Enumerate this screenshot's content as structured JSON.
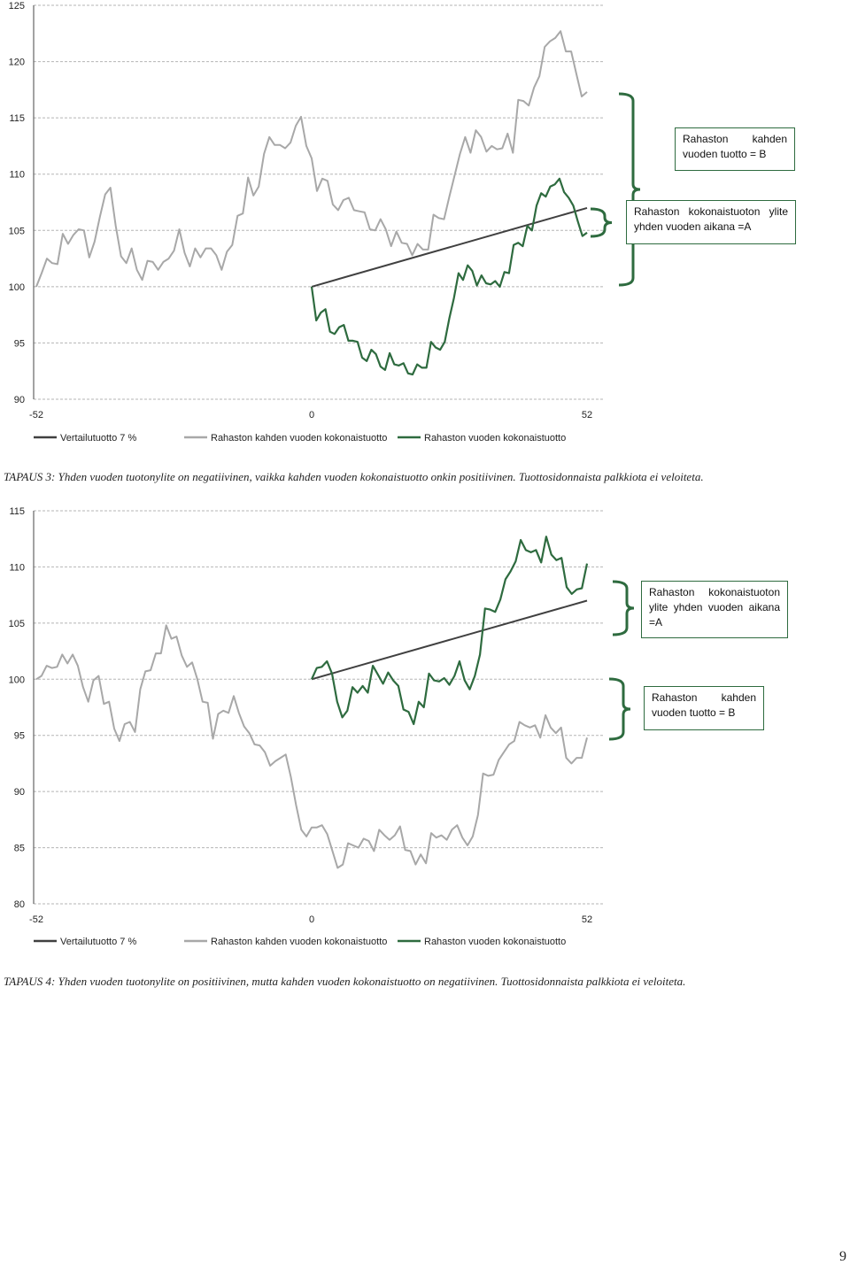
{
  "colors": {
    "benchmark": "#404040",
    "two_year": "#a8a8a8",
    "one_year": "#2e6b3f",
    "brace": "#2e6b3f",
    "grid": "#b5b5b5"
  },
  "chart_data": [
    {
      "type": "line",
      "title": "",
      "xlabel": "",
      "ylabel": "",
      "x_ticks": [
        "-52",
        "0",
        "52"
      ],
      "xlim": [
        -52,
        52
      ],
      "ylim": [
        90,
        125
      ],
      "y_ticks": [
        "90",
        "95",
        "100",
        "105",
        "110",
        "115",
        "120",
        "125"
      ],
      "legend": [
        "Vertailutuotto 7 %",
        "Rahaston kahden vuoden kokonaistuotto",
        "Rahaston vuoden kokonaistuotto"
      ],
      "series": [
        {
          "name": "Vertailutuotto 7 %",
          "x": [
            0,
            52
          ],
          "values": [
            100,
            107
          ]
        },
        {
          "name": "Rahaston kahden vuoden kokonaistuotto",
          "x_start": -52,
          "values": [
            100,
            101.2,
            102.5,
            102.1,
            102.0,
            104.7,
            103.8,
            104.6,
            105.1,
            105.0,
            102.6,
            104.0,
            106.2,
            108.2,
            108.8,
            105.4,
            102.7,
            102.1,
            103.4,
            101.5,
            100.6,
            102.3,
            102.2,
            101.5,
            102.2,
            102.5,
            103.2,
            105.1,
            103.0,
            101.8,
            103.4,
            102.6,
            103.4,
            103.4,
            102.8,
            101.5,
            103.1,
            103.7,
            106.3,
            106.5,
            109.7,
            108.1,
            108.9,
            111.8,
            113.3,
            112.6,
            112.6,
            112.3,
            112.8,
            114.3,
            115.1,
            112.5,
            111.4,
            108.5,
            109.6,
            109.4,
            107.3,
            106.8,
            107.7,
            107.9,
            106.8,
            106.7,
            106.6,
            105.1,
            105.0,
            106.0,
            105.1,
            103.6,
            104.9,
            103.9,
            103.8,
            102.8,
            103.8,
            103.3,
            103.3,
            106.4,
            106.1,
            106.0,
            108.0,
            109.9,
            111.8,
            113.3,
            111.9,
            113.9,
            113.3,
            112.0,
            112.5,
            112.2,
            112.3,
            113.6,
            111.9,
            116.6,
            116.5,
            116.1,
            117.7,
            118.7,
            121.3,
            121.8,
            122.1,
            122.7,
            120.9,
            120.9,
            118.9,
            116.9,
            117.3
          ]
        },
        {
          "name": "Rahaston vuoden kokonaistuotto",
          "x_start": 0,
          "values": [
            100,
            97.0,
            97.7,
            98.0,
            96.0,
            95.8,
            96.4,
            96.6,
            95.2,
            95.2,
            95.1,
            93.7,
            93.4,
            94.4,
            94.0,
            92.9,
            92.6,
            94.1,
            93.1,
            93.0,
            93.2,
            92.3,
            92.2,
            93.1,
            92.8,
            92.8,
            95.1,
            94.6,
            94.4,
            95.1,
            97.2,
            99.0,
            101.2,
            100.6,
            101.9,
            101.4,
            100.1,
            101.0,
            100.3,
            100.2,
            100.5,
            100.0,
            101.3,
            101.2,
            103.7,
            103.9,
            103.6,
            105.4,
            105.0,
            107.2,
            108.3,
            108.0,
            108.9,
            109.1,
            109.6,
            108.4,
            107.9,
            107.2,
            105.8,
            104.5,
            104.8
          ]
        }
      ],
      "annotations": [
        {
          "id": "B",
          "text": "Rahaston kahden vuoden tuotto = B"
        },
        {
          "id": "A",
          "text": "Rahaston kokonaistuoton ylite yhden vuoden aikana =A"
        }
      ]
    },
    {
      "type": "line",
      "title": "",
      "xlabel": "",
      "ylabel": "",
      "x_ticks": [
        "-52",
        "0",
        "52"
      ],
      "xlim": [
        -52,
        52
      ],
      "ylim": [
        80,
        115
      ],
      "y_ticks": [
        "80",
        "85",
        "90",
        "95",
        "100",
        "105",
        "110",
        "115"
      ],
      "legend": [
        "Vertailutuotto 7 %",
        "Rahaston kahden vuoden kokonaistuotto",
        "Rahaston vuoden kokonaistuotto"
      ],
      "series": [
        {
          "name": "Vertailutuotto 7 %",
          "x": [
            0,
            52
          ],
          "values": [
            100,
            107
          ]
        },
        {
          "name": "Rahaston kahden vuoden kokonaistuotto",
          "x_start": -52,
          "values": [
            100,
            100.3,
            101.2,
            101.0,
            101.1,
            102.2,
            101.4,
            102.2,
            101.2,
            99.3,
            98.0,
            99.9,
            100.3,
            97.8,
            98.0,
            95.6,
            94.5,
            96.0,
            96.2,
            95.3,
            99.1,
            100.7,
            100.8,
            102.3,
            102.3,
            104.8,
            103.6,
            103.8,
            102.1,
            101.1,
            101.5,
            100.0,
            98.0,
            97.9,
            94.7,
            96.9,
            97.2,
            97.0,
            98.5,
            97.0,
            95.8,
            95.2,
            94.2,
            94.1,
            93.5,
            92.3,
            92.7,
            93.0,
            93.3,
            91.3,
            88.8,
            86.6,
            86.0,
            86.8,
            86.8,
            87.0,
            86.2,
            84.7,
            83.2,
            83.5,
            85.4,
            85.2,
            85.0,
            85.8,
            85.6,
            84.7,
            86.6,
            86.1,
            85.7,
            86.1,
            86.9,
            84.8,
            84.7,
            83.5,
            84.4,
            83.6,
            86.3,
            85.9,
            86.1,
            85.7,
            86.6,
            87.0,
            85.9,
            85.2,
            86.0,
            87.9,
            91.6,
            91.4,
            91.5,
            92.8,
            93.5,
            94.2,
            94.5,
            96.2,
            95.9,
            95.7,
            95.9,
            94.8,
            96.8,
            95.7,
            95.2,
            95.7,
            93.0,
            92.5,
            93.0,
            93.0,
            94.8
          ]
        },
        {
          "name": "Rahaston vuoden kokonaistuotto",
          "x_start": 0,
          "values": [
            100,
            101.0,
            101.1,
            101.6,
            100.5,
            98.0,
            96.6,
            97.2,
            99.3,
            98.8,
            99.4,
            98.8,
            101.2,
            100.4,
            99.6,
            100.6,
            99.9,
            99.4,
            97.3,
            97.1,
            96.0,
            98.0,
            97.5,
            100.5,
            99.9,
            99.8,
            100.1,
            99.5,
            100.3,
            101.6,
            99.9,
            99.1,
            100.3,
            102.2,
            106.3,
            106.2,
            106.0,
            107.1,
            108.9,
            109.6,
            110.5,
            112.4,
            111.5,
            111.3,
            111.5,
            110.4,
            112.7,
            111.1,
            110.6,
            110.8,
            108.2,
            107.6,
            108.0,
            108.1,
            110.3
          ]
        }
      ],
      "annotations": [
        {
          "id": "A",
          "text": "Rahaston kokonaistuoton ylite yhden vuoden aikana =A"
        },
        {
          "id": "B",
          "text": "Rahaston kahden vuoden tuotto = B"
        }
      ]
    }
  ],
  "captions": {
    "case3": "TAPAUS 3: Yhden vuoden tuotonylite on negatiivinen, vaikka kahden vuoden kokonaistuotto onkin positiivinen. Tuottosidonnaista palkkiota ei veloiteta.",
    "case4": "TAPAUS 4: Yhden vuoden tuotonylite on positiivinen, mutta kahden vuoden kokonaistuotto on negatiivinen. Tuottosidonnaista palkkiota ei veloiteta."
  },
  "page_number": "9"
}
